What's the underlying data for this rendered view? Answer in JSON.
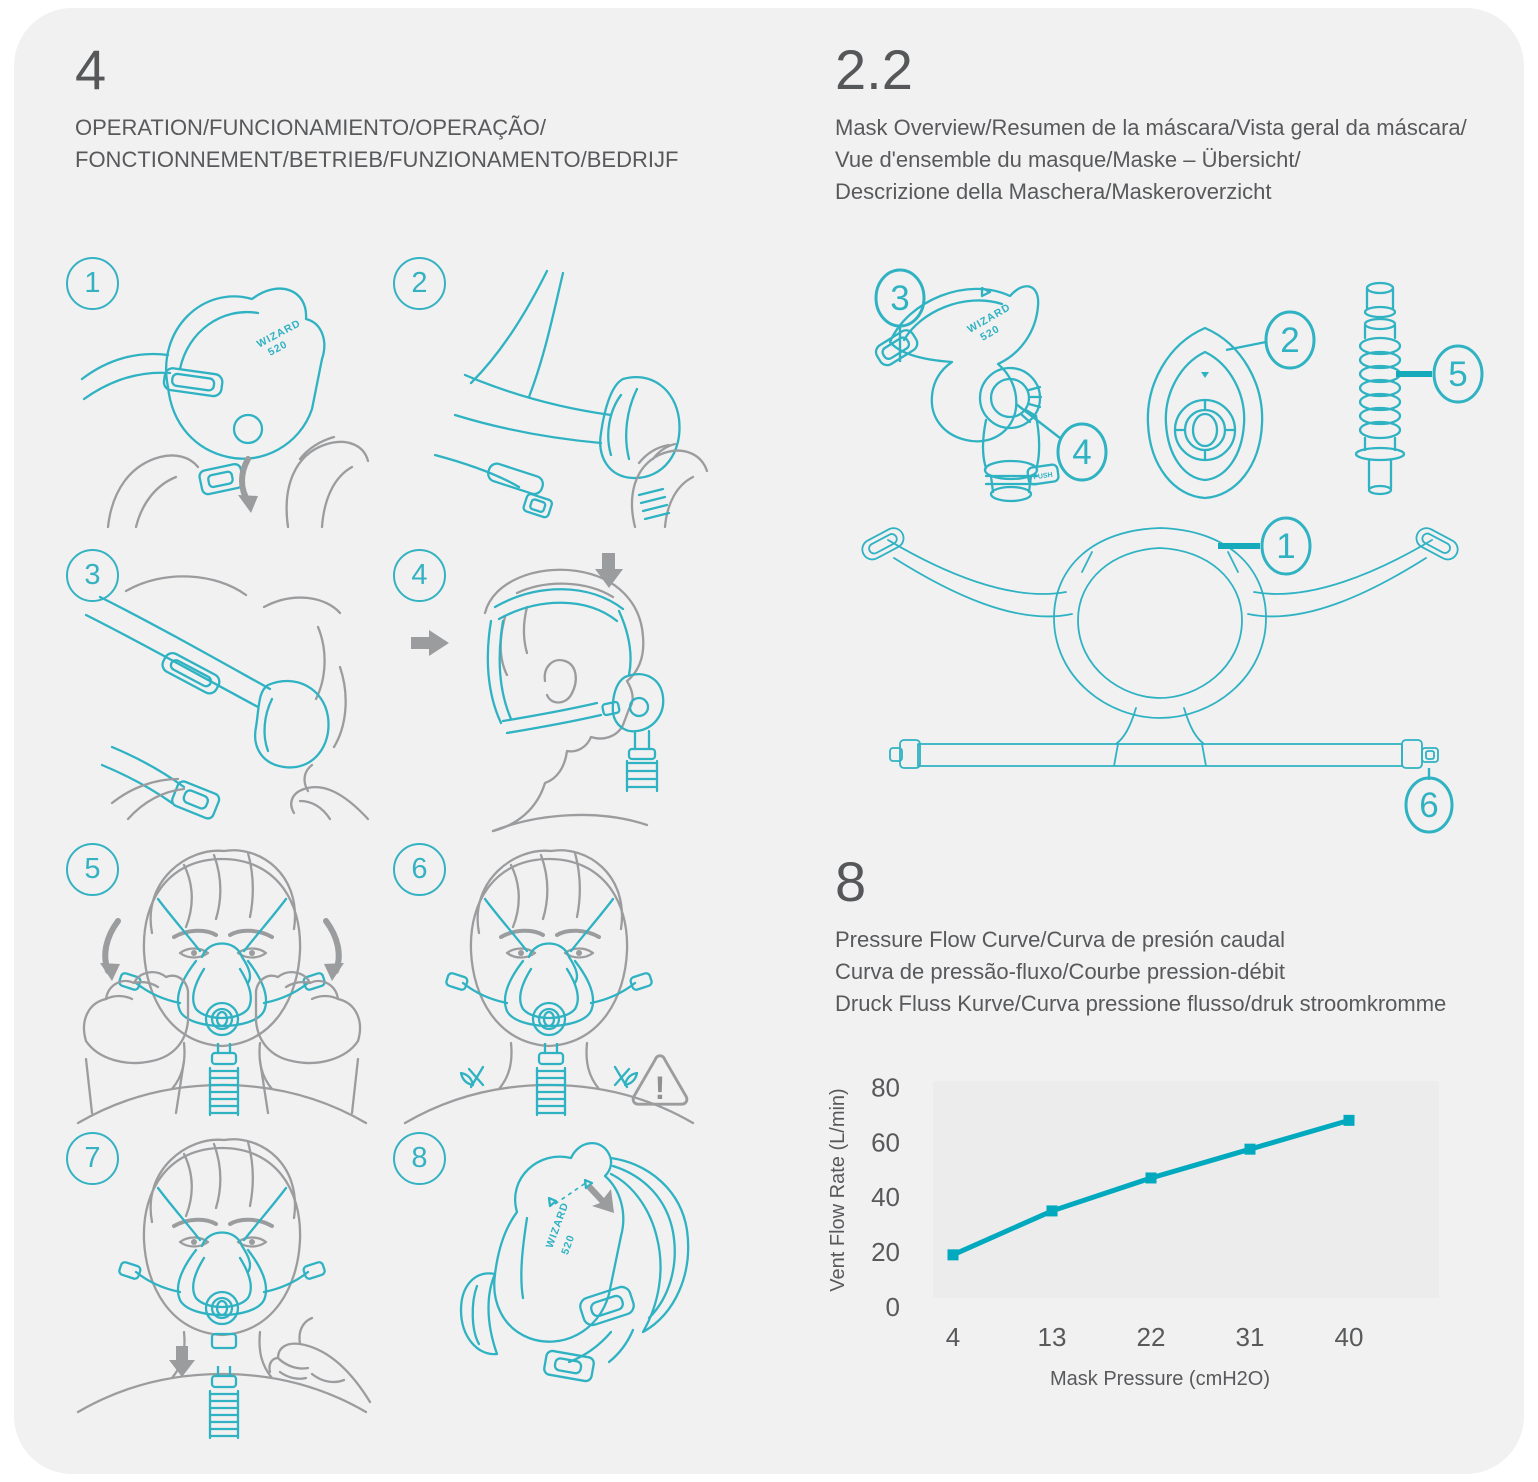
{
  "page": {
    "background": "#ffffff",
    "card_background": "#f1f1f2"
  },
  "colors": {
    "teal_art": "#2fb2c2",
    "gray_art": "#9b9c9e",
    "text": "#58595b"
  },
  "product": {
    "label_line1": "WIZARD",
    "label_line2": "520"
  },
  "operation": {
    "section_number": "4",
    "title_line1": "OPERATION/FUNCIONAMIENTO/OPERAÇÃO/",
    "title_line2": "FONCTIONNEMENT/BETRIEB/FUNZIONAMENTO/BEDRIJF",
    "warning_symbol": "!",
    "steps": [
      {
        "number": "1"
      },
      {
        "number": "2"
      },
      {
        "number": "3"
      },
      {
        "number": "4"
      },
      {
        "number": "5"
      },
      {
        "number": "6"
      },
      {
        "number": "7"
      },
      {
        "number": "8"
      }
    ]
  },
  "overview": {
    "section_number": "2.2",
    "title_line1": "Mask Overview/Resumen de la máscara/Vista geral da máscara/",
    "title_line2": "Vue d'ensemble du masque/Maske – Übersicht/",
    "title_line3": "Descrizione della Maschera/Maskeroverzicht",
    "elbow_button_label": "PUSH",
    "callouts": [
      {
        "number": "1"
      },
      {
        "number": "2"
      },
      {
        "number": "3"
      },
      {
        "number": "4"
      },
      {
        "number": "5"
      },
      {
        "number": "6"
      }
    ]
  },
  "flow_section": {
    "section_number": "8",
    "title_line1": "Pressure Flow Curve/Curva de presión caudal",
    "title_line2": "Curva de pressão-fluxo/Courbe pression-débit",
    "title_line3": "Druck Fluss Kurve/Curva pressione flusso/druk stroomkromme"
  },
  "chart_data": {
    "type": "line",
    "x": [
      4,
      13,
      22,
      31,
      40
    ],
    "values": [
      19,
      35,
      47,
      57.5,
      68
    ],
    "series": [
      {
        "name": "Vent Flow Rate",
        "values": [
          19,
          35,
          47,
          57.5,
          68
        ]
      }
    ],
    "xticks": [
      4,
      13,
      22,
      31,
      40
    ],
    "yticks": [
      0,
      20,
      40,
      60,
      80
    ],
    "xlabel": "Mask Pressure (cmH2O)",
    "ylabel": "Vent Flow Rate (L/min)",
    "xlim": [
      4,
      40
    ],
    "ylim": [
      0,
      80
    ],
    "grid": false,
    "legend": "none",
    "marker": "square",
    "line_color": "#00a9bd",
    "plot_background": "#ececed"
  }
}
